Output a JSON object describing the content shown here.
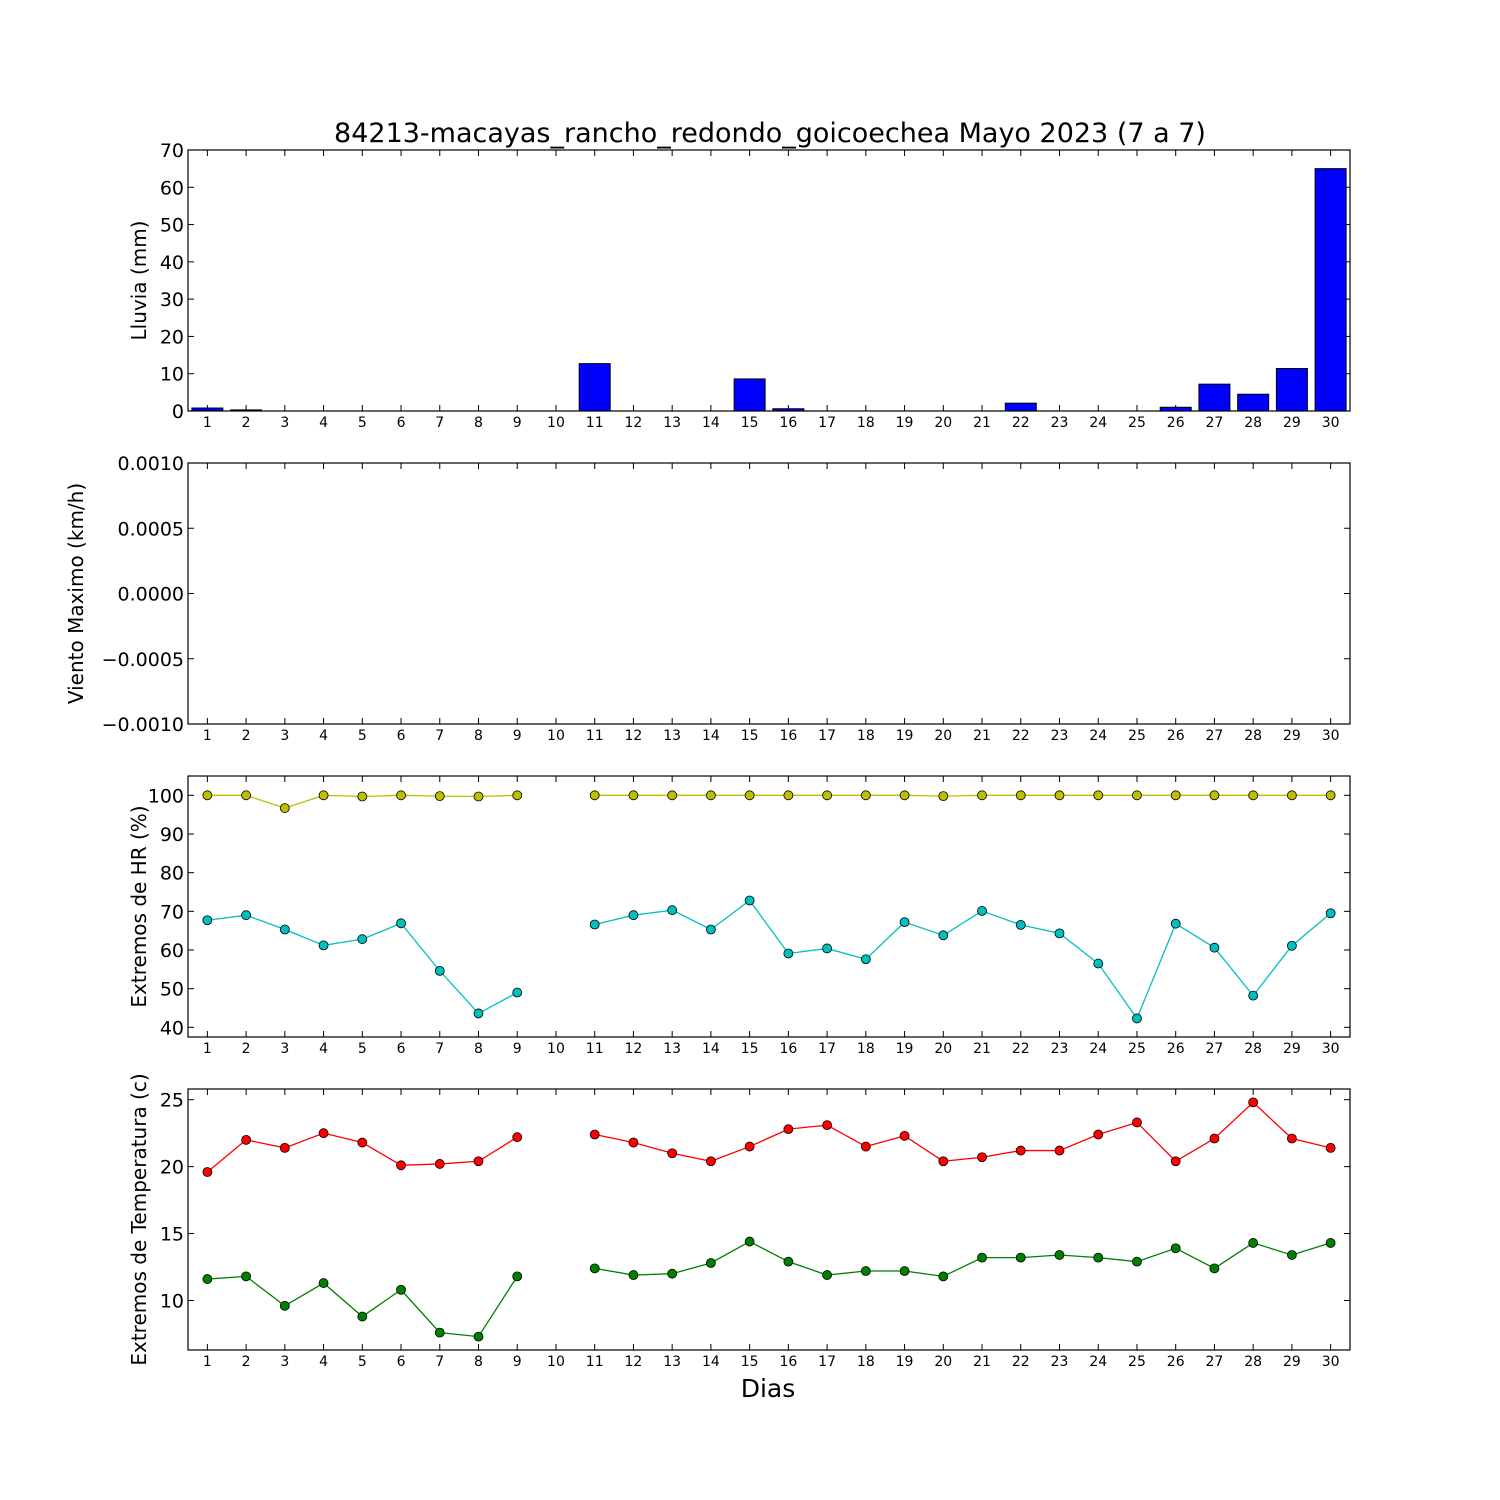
{
  "title": "84213-macayas_rancho_redondo_goicoechea Mayo 2023  (7 a 7)",
  "xlabel": "Dias",
  "colors": {
    "rain": "#0000ff",
    "hr_max": "#bfbf00",
    "hr_min": "#00bfbf",
    "t_max": "#ff0000",
    "t_min": "#008000"
  },
  "chart_data": [
    {
      "type": "bar",
      "ylabel": "Lluvia (mm)",
      "ylim": [
        0,
        70
      ],
      "yticks": [
        "0",
        "10",
        "20",
        "30",
        "40",
        "50",
        "60",
        "70"
      ],
      "categories": [
        "1",
        "2",
        "3",
        "4",
        "5",
        "6",
        "7",
        "8",
        "9",
        "10",
        "11",
        "12",
        "13",
        "14",
        "15",
        "16",
        "17",
        "18",
        "19",
        "20",
        "21",
        "22",
        "23",
        "24",
        "25",
        "26",
        "27",
        "28",
        "29",
        "30"
      ],
      "values": [
        0.8,
        0.3,
        0,
        0,
        0,
        0,
        0,
        0,
        0,
        0,
        12.7,
        0,
        0,
        0,
        8.6,
        0.6,
        0,
        0,
        0,
        0,
        0,
        2.1,
        0,
        0,
        0,
        1.0,
        7.2,
        4.5,
        11.4,
        65.0
      ]
    },
    {
      "type": "line",
      "ylabel": "Viento Maximo (km/h)",
      "ylim": [
        -0.001,
        0.001
      ],
      "yticks": [
        "0.0010",
        "0.0005",
        "0.0000",
        "−0.0005",
        "−0.0010"
      ],
      "categories": [
        "1",
        "2",
        "3",
        "4",
        "5",
        "6",
        "7",
        "8",
        "9",
        "10",
        "11",
        "12",
        "13",
        "14",
        "15",
        "16",
        "17",
        "18",
        "19",
        "20",
        "21",
        "22",
        "23",
        "24",
        "25",
        "26",
        "27",
        "28",
        "29",
        "30"
      ],
      "series": []
    },
    {
      "type": "line",
      "ylabel": "Extremos de HR (%)",
      "ylim": [
        37.5,
        105
      ],
      "yticks": [
        "40",
        "50",
        "60",
        "70",
        "80",
        "90",
        "100"
      ],
      "categories": [
        "1",
        "2",
        "3",
        "4",
        "5",
        "6",
        "7",
        "8",
        "9",
        "10",
        "11",
        "12",
        "13",
        "14",
        "15",
        "16",
        "17",
        "18",
        "19",
        "20",
        "21",
        "22",
        "23",
        "24",
        "25",
        "26",
        "27",
        "28",
        "29",
        "30"
      ],
      "series": [
        {
          "values": [
            100,
            100,
            96.7,
            100,
            99.7,
            100,
            99.8,
            99.7,
            100,
            null,
            100,
            100,
            100,
            100,
            100,
            100,
            100,
            100,
            100,
            99.8,
            100,
            100,
            100,
            100,
            100,
            100,
            100,
            100,
            100,
            100
          ]
        },
        {
          "values": [
            67.7,
            69,
            65.3,
            61.2,
            62.8,
            66.9,
            54.6,
            43.6,
            49,
            null,
            66.6,
            69,
            70.3,
            65.3,
            72.8,
            59.1,
            60.4,
            57.6,
            67.2,
            63.8,
            70.1,
            66.5,
            64.3,
            56.5,
            42.3,
            66.8,
            60.6,
            48.2,
            61.1,
            69.5
          ]
        }
      ]
    },
    {
      "type": "line",
      "ylabel": "Extremos de Temperatura (c)",
      "ylim": [
        6.3,
        25.8
      ],
      "yticks": [
        "10",
        "15",
        "20",
        "25"
      ],
      "categories": [
        "1",
        "2",
        "3",
        "4",
        "5",
        "6",
        "7",
        "8",
        "9",
        "10",
        "11",
        "12",
        "13",
        "14",
        "15",
        "16",
        "17",
        "18",
        "19",
        "20",
        "21",
        "22",
        "23",
        "24",
        "25",
        "26",
        "27",
        "28",
        "29",
        "30"
      ],
      "series": [
        {
          "values": [
            19.6,
            22.0,
            21.4,
            22.5,
            21.8,
            20.1,
            20.2,
            20.4,
            22.2,
            null,
            22.4,
            21.8,
            21.0,
            20.4,
            21.5,
            22.8,
            23.1,
            21.5,
            22.3,
            20.4,
            20.7,
            21.2,
            21.2,
            22.4,
            23.3,
            20.4,
            22.1,
            24.8,
            22.1,
            21.4
          ]
        },
        {
          "values": [
            11.6,
            11.8,
            9.6,
            11.3,
            8.8,
            10.8,
            7.6,
            7.3,
            11.8,
            null,
            12.4,
            11.9,
            12.0,
            12.8,
            14.4,
            12.9,
            11.9,
            12.2,
            12.2,
            11.8,
            13.2,
            13.2,
            13.4,
            13.2,
            12.9,
            13.9,
            12.4,
            14.3,
            13.4,
            14.3
          ]
        }
      ]
    }
  ]
}
